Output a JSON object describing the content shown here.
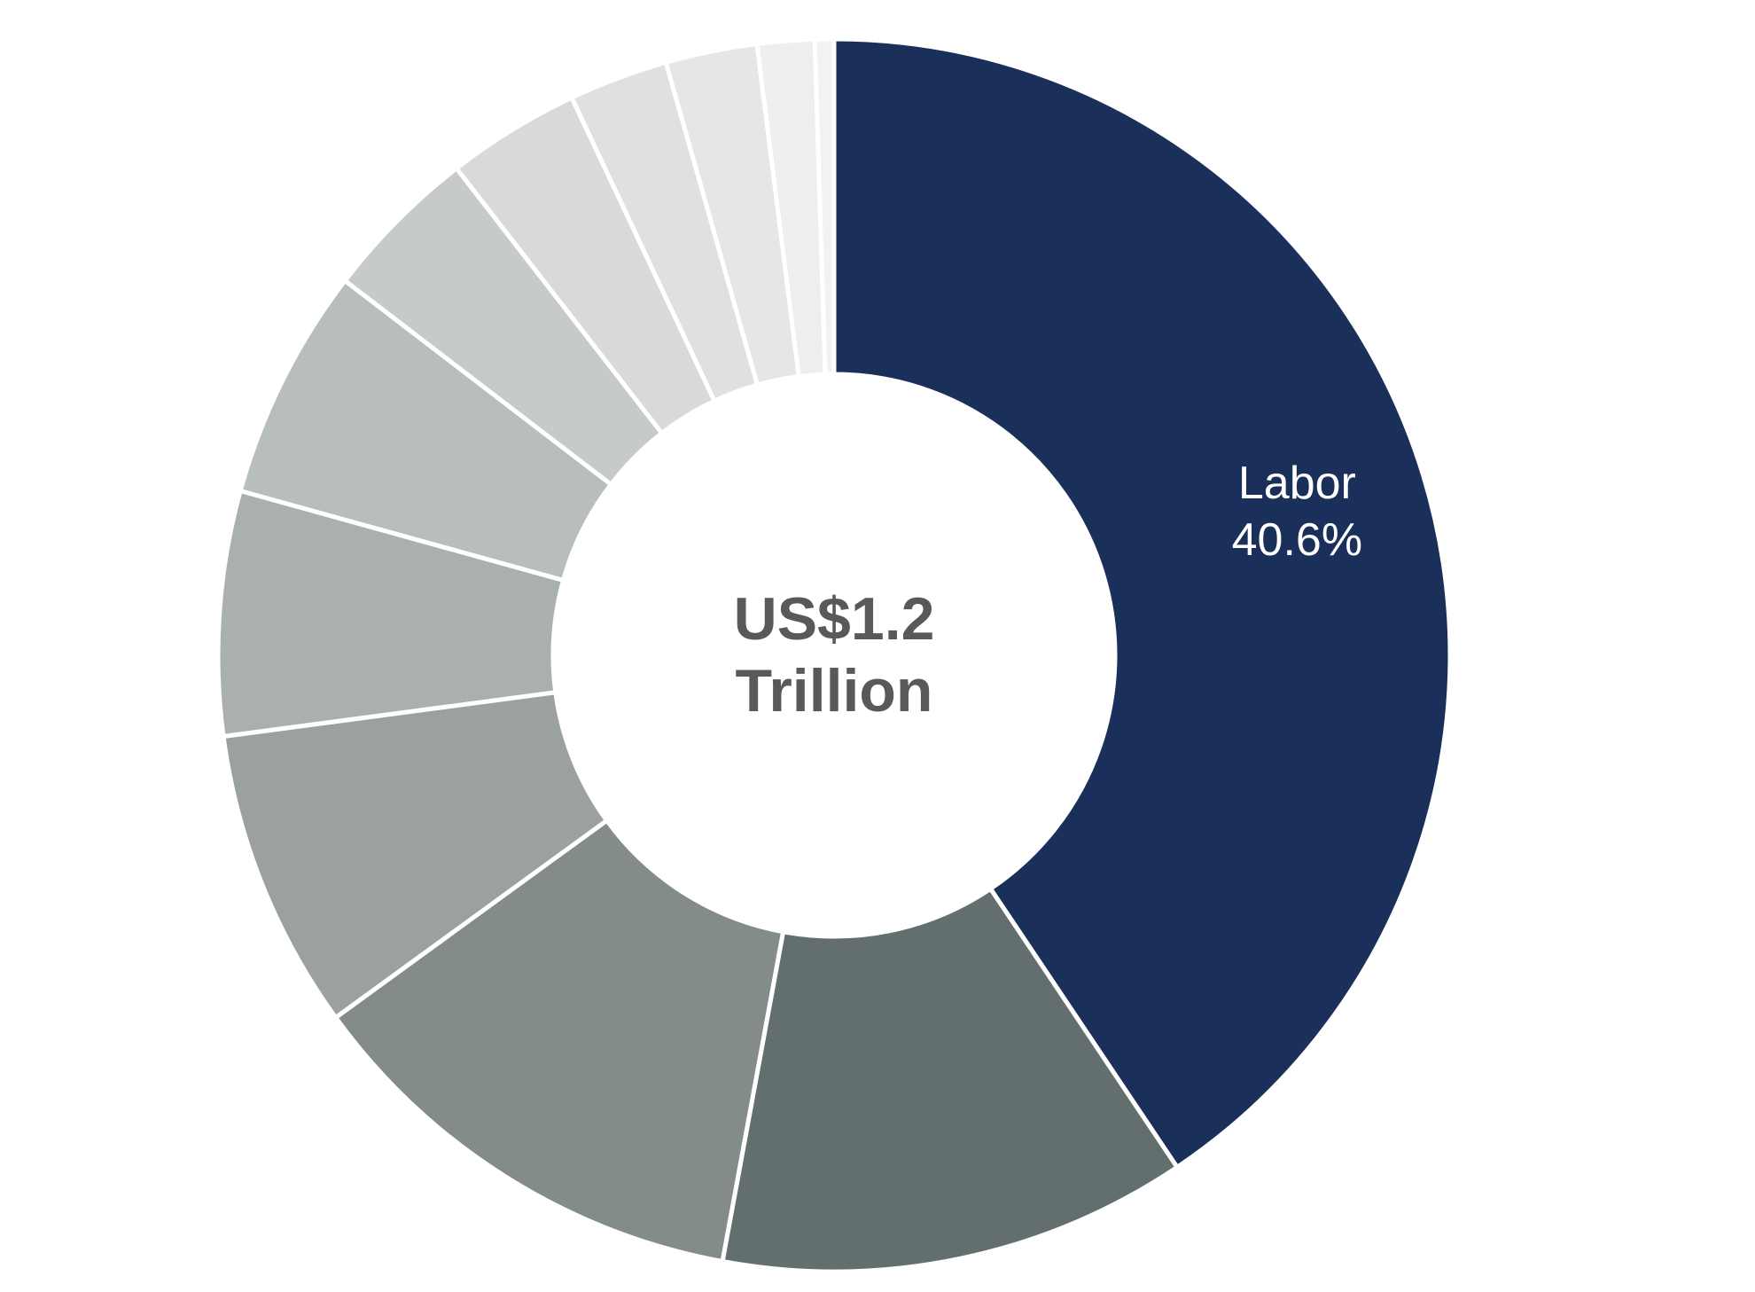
{
  "chart_data": {
    "type": "donut",
    "categories": [
      "Labor",
      null,
      null,
      null,
      null,
      null,
      null,
      null,
      null,
      null,
      null,
      null
    ],
    "values": [
      40.6,
      12.3,
      12.1,
      7.9,
      6.4,
      6.1,
      4.1,
      3.5,
      2.6,
      2.4,
      1.5,
      0.5
    ],
    "value_labels": [
      "40.6%",
      null,
      null,
      null,
      null,
      null,
      null,
      null,
      null,
      null,
      null,
      null
    ],
    "colors": [
      "#1a2f5a",
      "#636f6e",
      "#838b8b",
      "#9aa1a0",
      "#a9b0af",
      "#b8bebd",
      "#c6cbca",
      "#d9d9d9",
      "#e0e0e0",
      "#e6e6e6",
      "#eeeeee",
      "#f2f2f2"
    ],
    "center_label": [
      "US$1.2",
      "Trillion"
    ]
  }
}
